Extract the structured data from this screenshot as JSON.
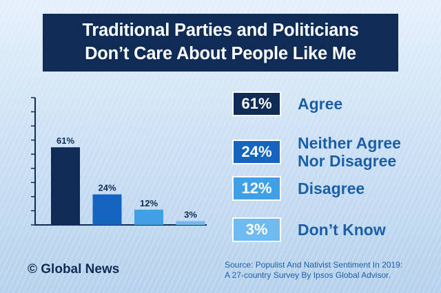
{
  "title": {
    "line1": "Traditional Parties and Politicians",
    "line2": "Don’t Care About People Like Me"
  },
  "chart_data": {
    "type": "bar",
    "categories": [
      "Agree",
      "Neither Agree Nor Disagree",
      "Disagree",
      "Don’t Know"
    ],
    "values": [
      61,
      24,
      12,
      3
    ],
    "value_labels": [
      "61%",
      "24%",
      "12%",
      "3%"
    ],
    "ylim": [
      0,
      100
    ],
    "grid": false,
    "legend_position": "right"
  },
  "legend": [
    {
      "value": "61%",
      "label_lines": [
        "Agree"
      ],
      "color": "#0f2c57"
    },
    {
      "value": "24%",
      "label_lines": [
        "Neither Agree",
        "Nor Disagree"
      ],
      "color": "#1565c0"
    },
    {
      "value": "12%",
      "label_lines": [
        "Disagree"
      ],
      "color": "#3fa0e6"
    },
    {
      "value": "3%",
      "label_lines": [
        "Don’t Know"
      ],
      "color": "#6fbaf0"
    }
  ],
  "brand": "© Global News",
  "source": {
    "line1": "Source: Populist And Nativist Sentiment In 2019:",
    "line2": "A 27-country Survey By Ipsos Global Advisor."
  }
}
